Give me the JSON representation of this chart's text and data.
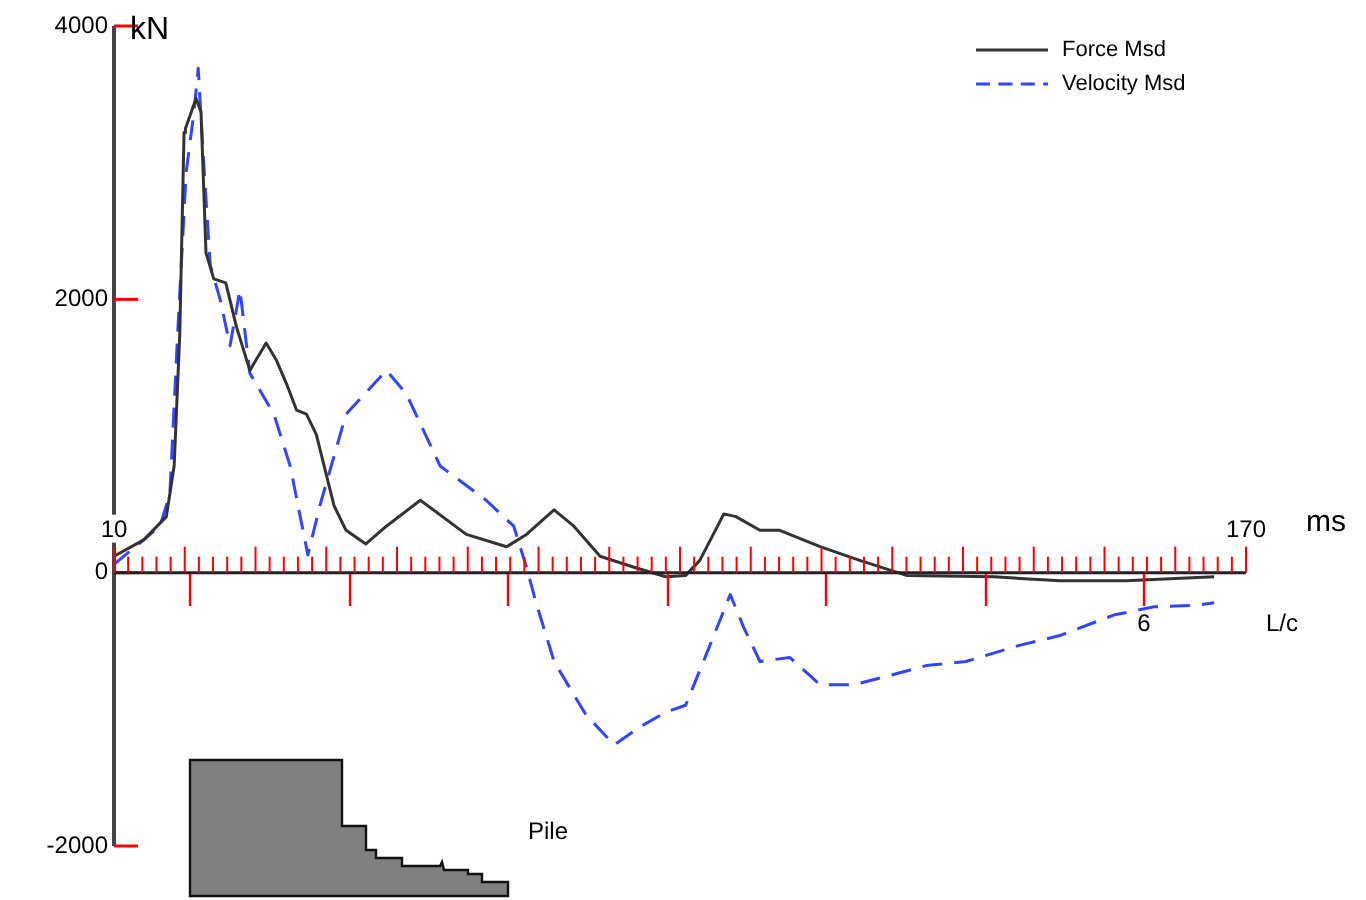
{
  "chart_data": {
    "type": "line",
    "ylabel": "kN",
    "xlabel": "ms",
    "legend": "top right",
    "marker": "none",
    "xlim": [
      10,
      170
    ],
    "ylim": [
      -2000,
      4000
    ],
    "yticks": [
      -2000,
      0,
      2000,
      4000
    ],
    "xticks": [
      10,
      {
        "value": 12,
        "label": null
      },
      {
        "value": 14,
        "label": null
      },
      {
        "value": 16,
        "label": null
      },
      {
        "value": 18,
        "label": null
      },
      {
        "value": 20,
        "label": null
      },
      {
        "value": 22,
        "label": null
      },
      {
        "value": 24,
        "label": null
      },
      {
        "value": 26,
        "label": null
      },
      {
        "value": 28,
        "label": null
      },
      {
        "value": 30,
        "label": null
      },
      {
        "value": 32,
        "label": null
      },
      {
        "value": 34,
        "label": null
      },
      {
        "value": 36,
        "label": null
      },
      {
        "value": 38,
        "label": null
      },
      {
        "value": 40,
        "label": null
      },
      {
        "value": 42,
        "label": null
      },
      {
        "value": 44,
        "label": null
      },
      {
        "value": 46,
        "label": null
      },
      {
        "value": 48,
        "label": null
      },
      {
        "value": 50,
        "label": null
      },
      {
        "value": 52,
        "label": null
      },
      {
        "value": 54,
        "label": null
      },
      {
        "value": 56,
        "label": null
      },
      {
        "value": 58,
        "label": null
      },
      {
        "value": 60,
        "label": null
      },
      {
        "value": 62,
        "label": null
      },
      {
        "value": 64,
        "label": null
      },
      {
        "value": 66,
        "label": null
      },
      {
        "value": 68,
        "label": null
      },
      {
        "value": 70,
        "label": null
      },
      {
        "value": 72,
        "label": null
      },
      {
        "value": 74,
        "label": null
      },
      {
        "value": 76,
        "label": null
      },
      {
        "value": 78,
        "label": null
      },
      {
        "value": 80,
        "label": null
      },
      {
        "value": 82,
        "label": null
      },
      {
        "value": 84,
        "label": null
      },
      {
        "value": 86,
        "label": null
      },
      {
        "value": 88,
        "label": null
      },
      {
        "value": 90,
        "label": null
      },
      {
        "value": 92,
        "label": null
      },
      {
        "value": 94,
        "label": null
      },
      {
        "value": 96,
        "label": null
      },
      {
        "value": 98,
        "label": null
      },
      {
        "value": 100,
        "label": null
      },
      {
        "value": 102,
        "label": null
      },
      {
        "value": 104,
        "label": null
      },
      {
        "value": 106,
        "label": null
      },
      {
        "value": 108,
        "label": null
      },
      {
        "value": 110,
        "label": null
      },
      {
        "value": 112,
        "label": null
      },
      {
        "value": 114,
        "label": null
      },
      {
        "value": 116,
        "label": null
      },
      {
        "value": 118,
        "label": null
      },
      {
        "value": 120,
        "label": null
      },
      {
        "value": 122,
        "label": null
      },
      {
        "value": 124,
        "label": null
      },
      {
        "value": 126,
        "label": null
      },
      {
        "value": 128,
        "label": null
      },
      {
        "value": 130,
        "label": null
      },
      {
        "value": 132,
        "label": null
      },
      {
        "value": 134,
        "label": null
      },
      {
        "value": 136,
        "label": null
      },
      {
        "value": 138,
        "label": null
      },
      {
        "value": 140,
        "label": null
      },
      {
        "value": 142,
        "label": null
      },
      {
        "value": 144,
        "label": null
      },
      {
        "value": 146,
        "label": null
      },
      {
        "value": 148,
        "label": null
      },
      {
        "value": 150,
        "label": null
      },
      {
        "value": 152,
        "label": null
      },
      {
        "value": 154,
        "label": null
      },
      {
        "value": 156,
        "label": null
      },
      {
        "value": 158,
        "label": null
      },
      {
        "value": 160,
        "label": null
      },
      {
        "value": 162,
        "label": null
      },
      {
        "value": 164,
        "label": null
      },
      {
        "value": 166,
        "label": null
      },
      {
        "value": 168,
        "label": null
      },
      170
    ],
    "annotations": [
      "Pile",
      "6",
      "L/c"
    ],
    "series": [
      {
        "name": "Force Msd",
        "color": "#333333",
        "line_style": "solid",
        "x": [
          10,
          14.2,
          17.4,
          18.5,
          19.3,
          19.9,
          20.1,
          21.6,
          22.3,
          23.0,
          24.1,
          25.8,
          27.3,
          29.2,
          31.5,
          32.9,
          34.4,
          35.8,
          37.2,
          38.6,
          41.1,
          42.8,
          45.6,
          48.5,
          53.3,
          59.8,
          65.5,
          68.3,
          72.2,
          75,
          78.7,
          83.5,
          88,
          90.8,
          92.8,
          96.2,
          97.9,
          101.3,
          104.1,
          109.8,
          115.4,
          122,
          134.4,
          143.7,
          153,
          165.5
        ],
        "values": [
          120,
          240,
          410,
          780,
          1750,
          3220,
          3250,
          3470,
          3370,
          2340,
          2150,
          2120,
          1800,
          1480,
          1680,
          1560,
          1380,
          1190,
          1160,
          1010,
          490,
          310,
          210,
          340,
          530,
          280,
          190,
          280,
          460,
          340,
          120,
          40,
          -30,
          -20,
          90,
          430,
          410,
          310,
          310,
          190,
          90,
          -20,
          -30,
          -60,
          -60,
          -30
        ]
      },
      {
        "name": "Velocity Msd",
        "color": "#3344ff",
        "line_style": "dashed",
        "x": [
          10,
          16.5,
          17.9,
          19.0,
          20.2,
          21.3,
          21.9,
          22.7,
          23.6,
          25,
          26.4,
          27.8,
          29.2,
          32.6,
          34.9,
          37.4,
          39.1,
          42.8,
          48.5,
          51.3,
          56.1,
          62.6,
          66.5,
          68.3,
          69.6,
          72.2,
          76.7,
          80.7,
          84.3,
          88,
          90.8,
          93.7,
          97.1,
          99,
          101.3,
          105.5,
          109.8,
          114.6,
          119.1,
          124.8,
          130.4,
          138.1,
          143.7,
          151.3,
          157,
          162.7,
          165.5
        ],
        "values": [
          60,
          340,
          580,
          1750,
          2930,
          3370,
          3690,
          2980,
          2250,
          2000,
          1660,
          2070,
          1460,
          1160,
          780,
          130,
          490,
          1160,
          1480,
          1310,
          780,
          530,
          340,
          40,
          -210,
          -650,
          -1040,
          -1260,
          -1130,
          -1020,
          -970,
          -600,
          -160,
          -400,
          -650,
          -620,
          -820,
          -820,
          -760,
          -680,
          -650,
          -530,
          -460,
          -310,
          -250,
          -240,
          -220
        ]
      }
    ]
  }
}
